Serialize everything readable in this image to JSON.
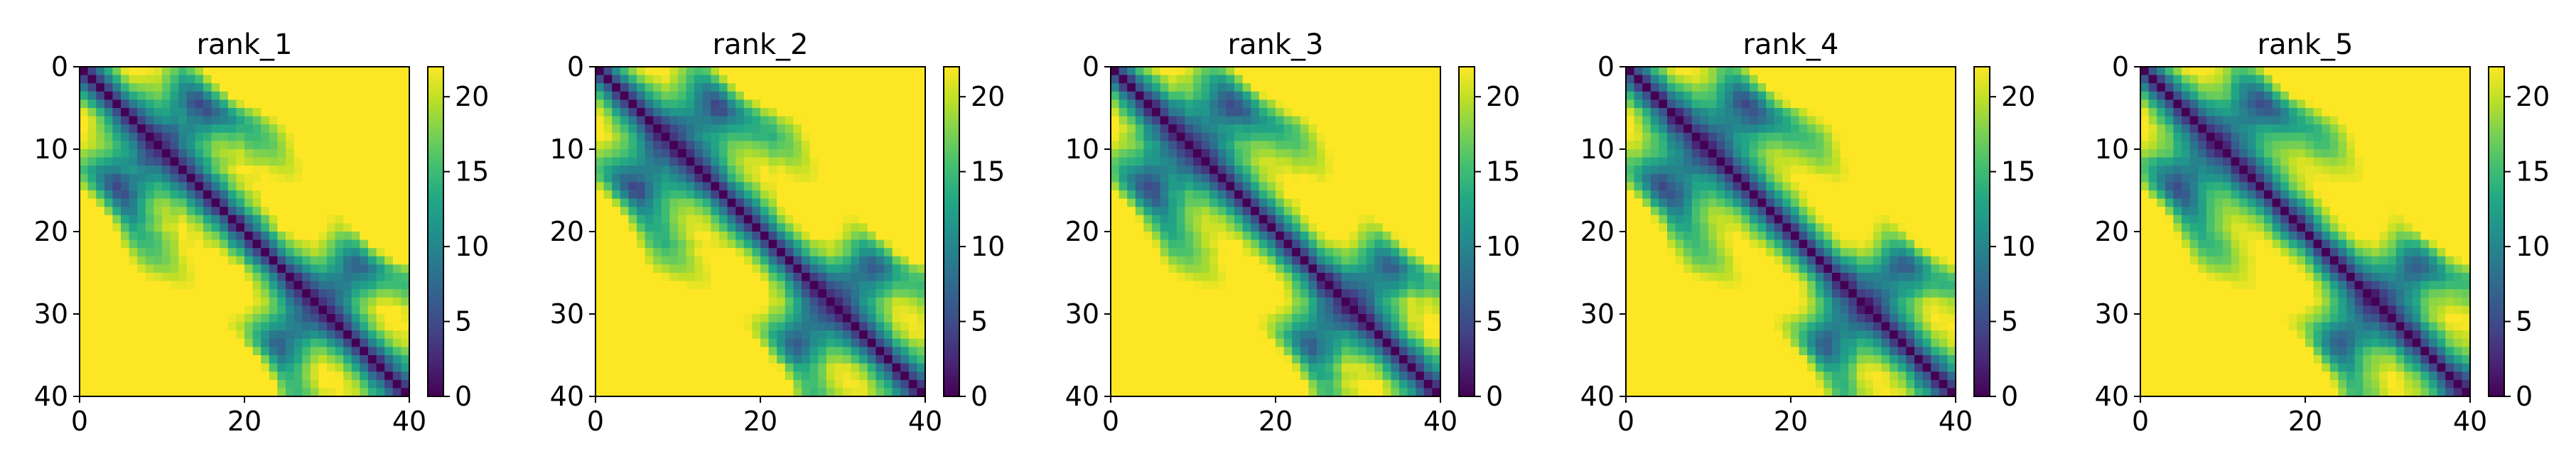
{
  "figure": {
    "background": "#ffffff",
    "colormap": "viridis"
  },
  "chart_data": [
    {
      "type": "heatmap",
      "title": "rank_1",
      "xlabel": "",
      "ylabel": "",
      "matrix_size": 40,
      "xlim": [
        0,
        40
      ],
      "ylim": [
        40,
        0
      ],
      "xticks": [
        0,
        20,
        40
      ],
      "yticks": [
        0,
        10,
        20,
        30,
        40
      ],
      "colorbar": {
        "range": [
          0,
          22
        ],
        "ticks": [
          0,
          5,
          10,
          15,
          20
        ]
      },
      "variation": 0,
      "matrix_description": "Pairwise distance map; low values (purple) along the diagonal, high values (yellow) away from it, saturating near 22."
    },
    {
      "type": "heatmap",
      "title": "rank_2",
      "xlabel": "",
      "ylabel": "",
      "matrix_size": 40,
      "xlim": [
        0,
        40
      ],
      "ylim": [
        40,
        0
      ],
      "xticks": [
        0,
        20,
        40
      ],
      "yticks": [
        0,
        10,
        20,
        30,
        40
      ],
      "colorbar": {
        "range": [
          0,
          22
        ],
        "ticks": [
          0,
          5,
          10,
          15,
          20
        ]
      },
      "variation": 1
    },
    {
      "type": "heatmap",
      "title": "rank_3",
      "xlabel": "",
      "ylabel": "",
      "matrix_size": 40,
      "xlim": [
        0,
        40
      ],
      "ylim": [
        40,
        0
      ],
      "xticks": [
        0,
        20,
        40
      ],
      "yticks": [
        0,
        10,
        20,
        30,
        40
      ],
      "colorbar": {
        "range": [
          0,
          22
        ],
        "ticks": [
          0,
          5,
          10,
          15,
          20
        ]
      },
      "variation": 2
    },
    {
      "type": "heatmap",
      "title": "rank_4",
      "xlabel": "",
      "ylabel": "",
      "matrix_size": 40,
      "xlim": [
        0,
        40
      ],
      "ylim": [
        40,
        0
      ],
      "xticks": [
        0,
        20,
        40
      ],
      "yticks": [
        0,
        10,
        20,
        30,
        40
      ],
      "colorbar": {
        "range": [
          0,
          22
        ],
        "ticks": [
          0,
          5,
          10,
          15,
          20
        ]
      },
      "variation": 3
    },
    {
      "type": "heatmap",
      "title": "rank_5",
      "xlabel": "",
      "ylabel": "",
      "matrix_size": 40,
      "xlim": [
        0,
        40
      ],
      "ylim": [
        40,
        0
      ],
      "xticks": [
        0,
        20,
        40
      ],
      "yticks": [
        0,
        10,
        20,
        30,
        40
      ],
      "colorbar": {
        "range": [
          0,
          22
        ],
        "ticks": [
          0,
          5,
          10,
          15,
          20
        ]
      },
      "variation": 4
    }
  ]
}
